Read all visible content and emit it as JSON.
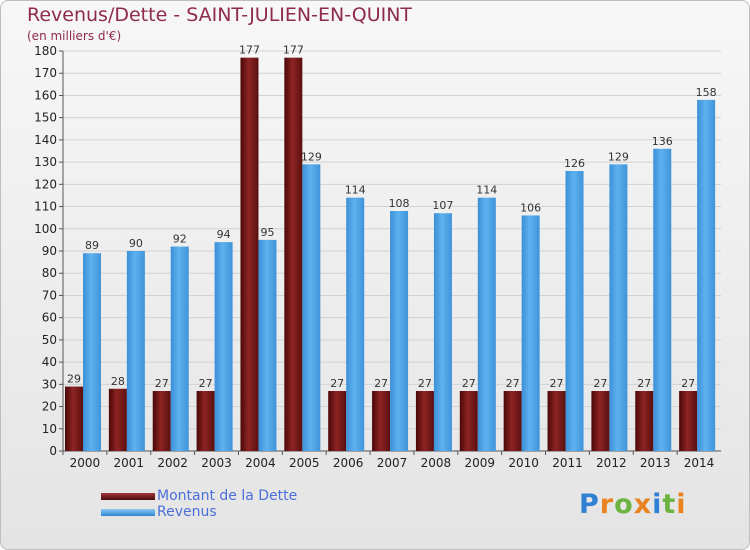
{
  "chart_data": {
    "type": "bar",
    "title": "Revenus/Dette - SAINT-JULIEN-EN-QUINT",
    "subtitle": "(en milliers d'€)",
    "xlabel": "",
    "ylabel": "(en milliers d'€)",
    "ylim": [
      0,
      180
    ],
    "ytick_step": 10,
    "grid": true,
    "legend_position": "bottom-left",
    "categories": [
      "2000",
      "2001",
      "2002",
      "2003",
      "2004",
      "2005",
      "2006",
      "2007",
      "2008",
      "2009",
      "2010",
      "2011",
      "2012",
      "2013",
      "2014"
    ],
    "series": [
      {
        "name": "Montant de la Dette",
        "color": "#7a1a1a",
        "values": [
          29,
          28,
          27,
          27,
          177,
          177,
          27,
          27,
          27,
          27,
          27,
          27,
          27,
          27,
          27
        ]
      },
      {
        "name": "Revenus",
        "color": "#4aa3e6",
        "values": [
          89,
          90,
          92,
          94,
          95,
          129,
          114,
          108,
          107,
          114,
          106,
          126,
          129,
          136,
          158
        ]
      }
    ]
  },
  "logo": {
    "text": "Proxiti"
  }
}
